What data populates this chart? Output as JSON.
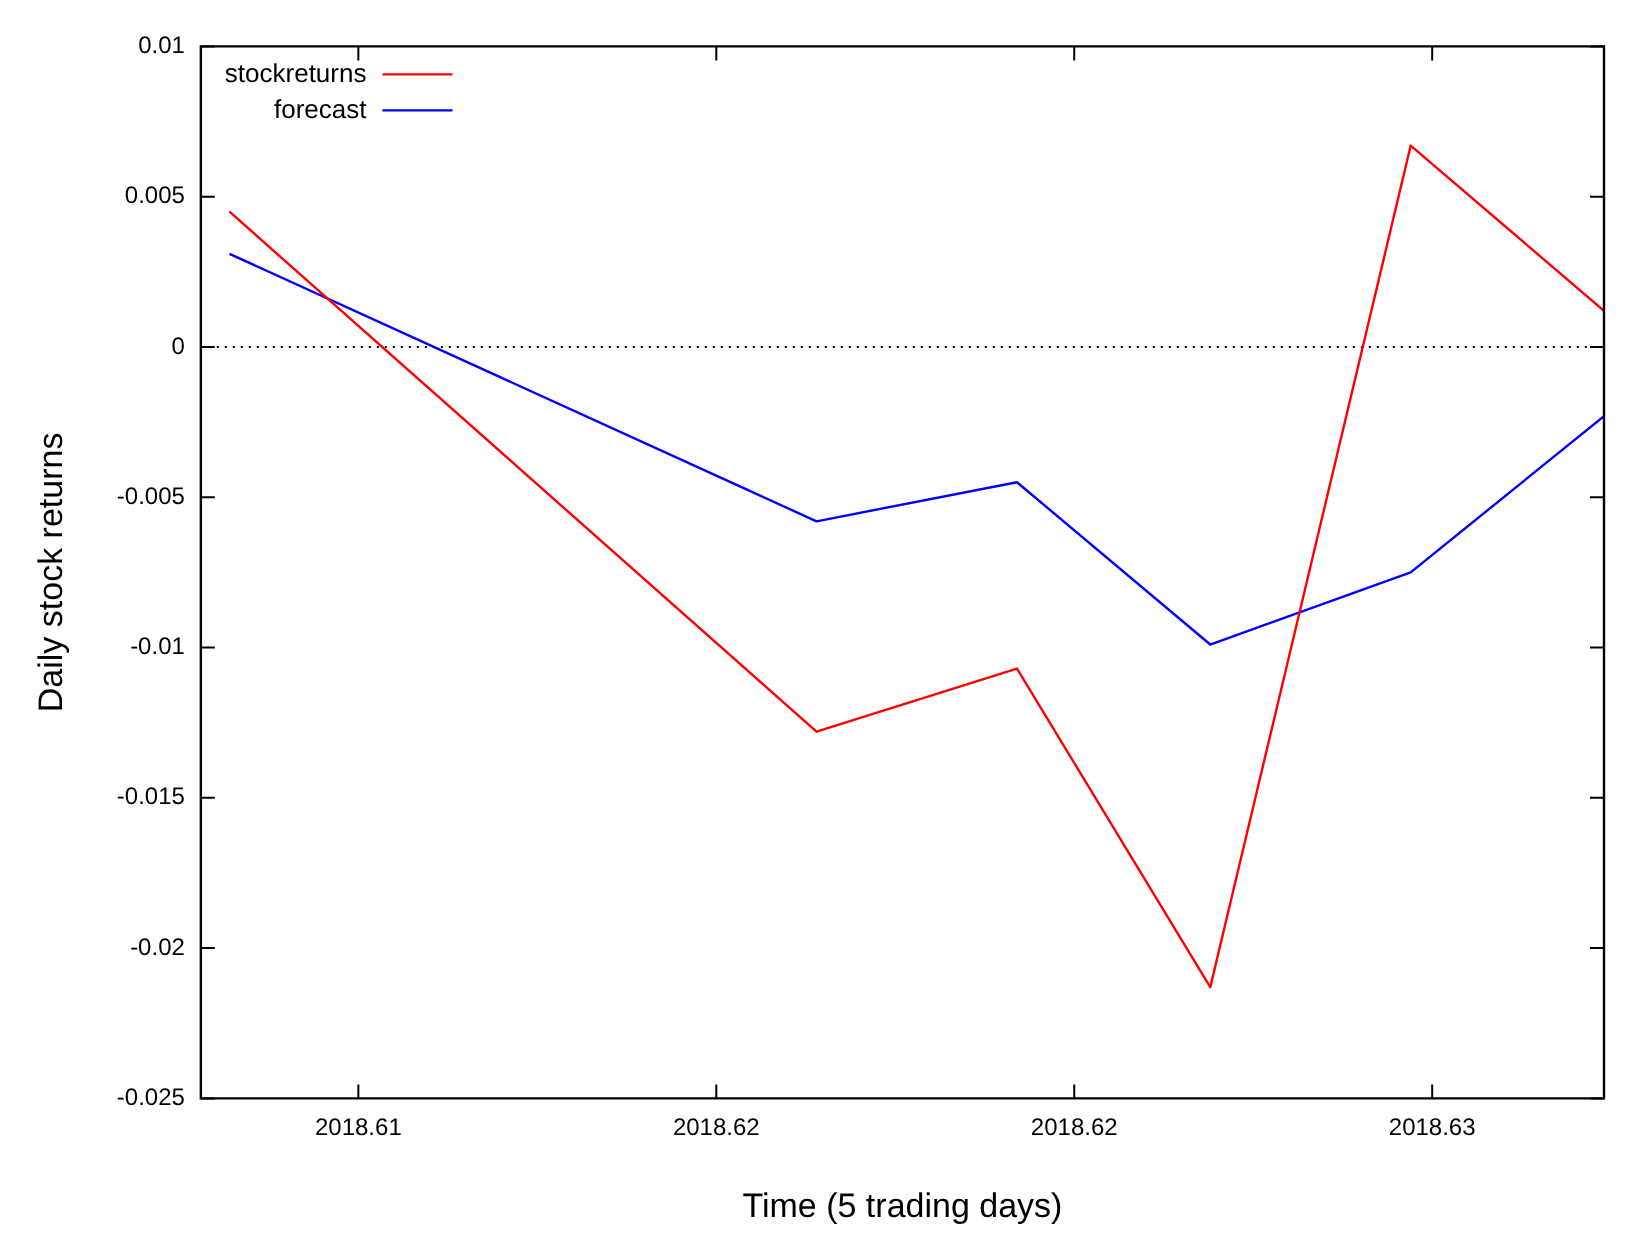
{
  "chart_data": {
    "type": "line",
    "xlabel": "Time (5 trading days)",
    "ylabel": "Daily stock returns",
    "x": [
      2018.6082,
      2018.6164,
      2018.6192,
      2018.6219,
      2018.6247,
      2018.6274
    ],
    "series": [
      {
        "name": "stockreturns",
        "color": "#ff0000",
        "values": [
          0.0045,
          -0.0128,
          -0.0107,
          -0.0213,
          0.0067,
          0.0012
        ]
      },
      {
        "name": "forecast",
        "color": "#0000ff",
        "values": [
          0.0031,
          -0.0058,
          -0.0045,
          -0.0099,
          -0.0075,
          -0.0023
        ]
      }
    ],
    "xlim": [
      2018.6078,
      2018.6274
    ],
    "xticks": [
      {
        "value": 2018.61,
        "label": "2018.61"
      },
      {
        "value": 2018.615,
        "label": "2018.62"
      },
      {
        "value": 2018.62,
        "label": "2018.62"
      },
      {
        "value": 2018.625,
        "label": "2018.63"
      }
    ],
    "ylim": [
      -0.025,
      0.01
    ],
    "yticks": [
      -0.025,
      -0.02,
      -0.015,
      -0.01,
      -0.005,
      0,
      0.005,
      0.01
    ],
    "ref_lines": [
      {
        "axis": "y",
        "value": 0,
        "line_style": "dotted",
        "color": "#000000"
      }
    ],
    "legend": "top left",
    "grid": false,
    "marker": "none",
    "line_style": "solid"
  }
}
